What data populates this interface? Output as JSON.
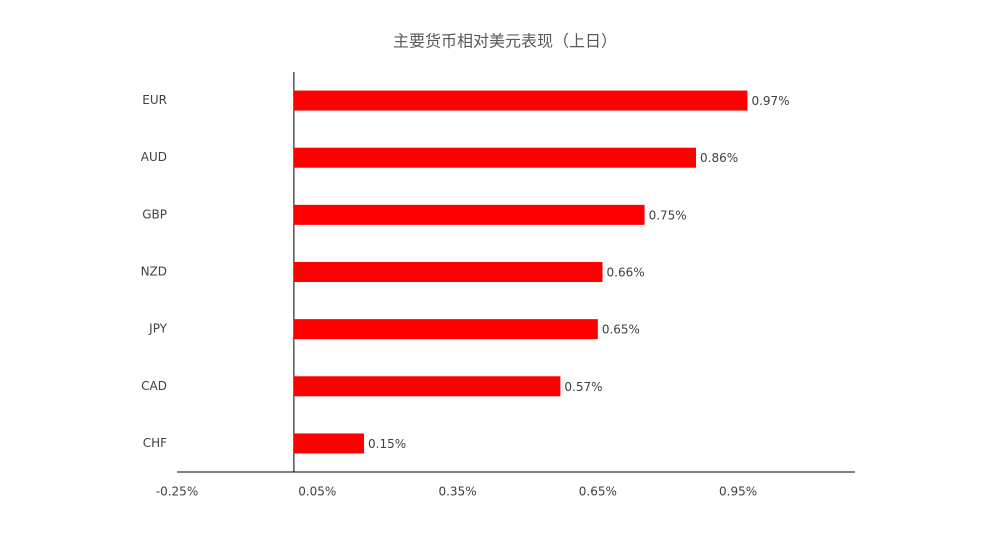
{
  "chart_data": {
    "type": "bar",
    "orientation": "horizontal",
    "title": "主要货币相对美元表现（上日）",
    "categories": [
      "EUR",
      "AUD",
      "GBP",
      "NZD",
      "JPY",
      "CAD",
      "CHF"
    ],
    "values": [
      0.97,
      0.86,
      0.75,
      0.66,
      0.65,
      0.57,
      0.15
    ],
    "value_labels": [
      "0.97%",
      "0.86%",
      "0.75%",
      "0.66%",
      "0.65%",
      "0.57%",
      "0.15%"
    ],
    "color": "#ff0000",
    "xlim": [
      -0.25,
      1.2
    ],
    "xticks": [
      {
        "value": -0.25,
        "label": "-0.25%"
      },
      {
        "value": 0.05,
        "label": "0.05%"
      },
      {
        "value": 0.35,
        "label": "0.35%"
      },
      {
        "value": 0.65,
        "label": "0.65%"
      },
      {
        "value": 0.95,
        "label": "0.95%"
      }
    ],
    "grid": false
  }
}
